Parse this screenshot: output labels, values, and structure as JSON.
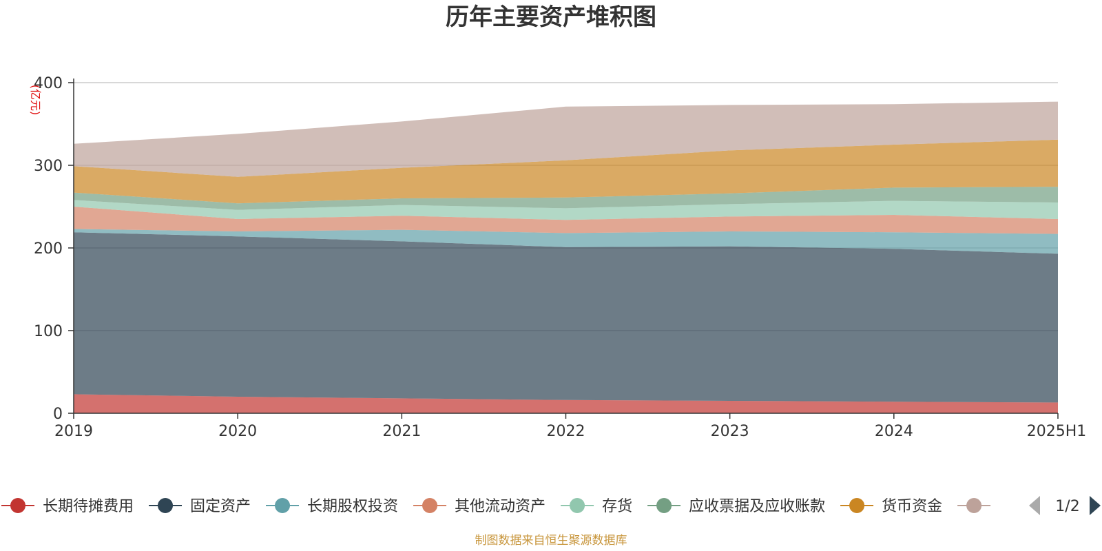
{
  "chart_data": {
    "type": "area",
    "stacked": true,
    "title": "历年主要资产堆积图",
    "unit_label": "(亿元)",
    "x": [
      "2019",
      "2020",
      "2021",
      "2022",
      "2023",
      "2024",
      "2025H1"
    ],
    "ylim": [
      0,
      400
    ],
    "yticks": [
      0,
      100,
      200,
      300,
      400
    ],
    "grid": true,
    "legend_position": "bottom",
    "legend_page": "1/2",
    "source": "制图数据来自恒生聚源数据库",
    "series": [
      {
        "name": "长期待摊费用",
        "color": "#c23531",
        "values": [
          23,
          20,
          18,
          16,
          15,
          14,
          13
        ]
      },
      {
        "name": "固定资产",
        "color": "#2f4554",
        "values": [
          196,
          194,
          190,
          185,
          187,
          185,
          180
        ]
      },
      {
        "name": "长期股权投资",
        "color": "#61a0a8",
        "values": [
          4,
          6,
          14,
          17,
          18,
          20,
          24
        ]
      },
      {
        "name": "其他流动资产",
        "color": "#d48265",
        "values": [
          27,
          15,
          17,
          16,
          18,
          21,
          18
        ]
      },
      {
        "name": "存货",
        "color": "#91c7ae",
        "values": [
          8,
          11,
          13,
          14,
          15,
          17,
          20
        ]
      },
      {
        "name": "应收票据及应收账款",
        "color": "#749f83",
        "values": [
          9,
          8,
          8,
          13,
          13,
          16,
          19
        ]
      },
      {
        "name": "货币资金",
        "color": "#ca8622",
        "values": [
          32,
          32,
          37,
          45,
          52,
          52,
          57
        ]
      },
      {
        "name": "",
        "color": "#bda29a",
        "values": [
          27,
          52,
          56,
          65,
          55,
          49,
          46
        ]
      }
    ]
  }
}
